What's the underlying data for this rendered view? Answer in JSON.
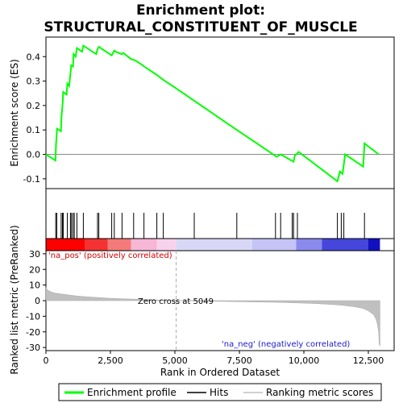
{
  "title_line1": "Enrichment plot:",
  "title_line2": "STRUCTURAL_CONSTITUENT_OF_MUSCLE",
  "chart_data": {
    "type": "line",
    "x_label": "Rank in Ordered Dataset",
    "x_range": [
      0,
      13500
    ],
    "x_ticks": [
      0,
      2500,
      5000,
      7500,
      10000,
      12500
    ],
    "x_tick_labels": [
      "0",
      "2,500",
      "5,000",
      "7,500",
      "10,000",
      "12,500"
    ],
    "es_panel": {
      "ylabel": "Enrichment score (ES)",
      "ylim": [
        -0.14,
        0.48
      ],
      "y_ticks": [
        -0.1,
        0.0,
        0.1,
        0.2,
        0.3,
        0.4
      ],
      "y_tick_labels": [
        "-0.1",
        "0.0",
        "0.1",
        "0.2",
        "0.3",
        "0.4"
      ],
      "series_name": "Enrichment profile",
      "color": "#00ff00",
      "points": [
        [
          0,
          0
        ],
        [
          370,
          -0.025
        ],
        [
          390,
          0.04
        ],
        [
          430,
          0.105
        ],
        [
          580,
          0.095
        ],
        [
          600,
          0.15
        ],
        [
          650,
          0.21
        ],
        [
          670,
          0.255
        ],
        [
          800,
          0.245
        ],
        [
          830,
          0.29
        ],
        [
          900,
          0.28
        ],
        [
          950,
          0.33
        ],
        [
          980,
          0.365
        ],
        [
          1050,
          0.36
        ],
        [
          1070,
          0.41
        ],
        [
          1150,
          0.4
        ],
        [
          1200,
          0.435
        ],
        [
          1400,
          0.42
        ],
        [
          1450,
          0.445
        ],
        [
          1950,
          0.41
        ],
        [
          2000,
          0.43
        ],
        [
          2050,
          0.44
        ],
        [
          2550,
          0.405
        ],
        [
          2650,
          0.425
        ],
        [
          2700,
          0.42
        ],
        [
          2950,
          0.41
        ],
        [
          3000,
          0.415
        ],
        [
          3300,
          0.39
        ],
        [
          3450,
          0.385
        ],
        [
          3750,
          0.365
        ],
        [
          3800,
          0.36
        ],
        [
          4300,
          0.325
        ],
        [
          4550,
          0.305
        ],
        [
          5049,
          0.27
        ],
        [
          7400,
          0.1
        ],
        [
          8950,
          -0.01
        ],
        [
          9100,
          0.0
        ],
        [
          9600,
          -0.03
        ],
        [
          9650,
          -0.005
        ],
        [
          9800,
          0.01
        ],
        [
          11300,
          -0.11
        ],
        [
          11400,
          -0.07
        ],
        [
          11500,
          -0.08
        ],
        [
          11550,
          -0.04
        ],
        [
          11600,
          0.0
        ],
        [
          12300,
          -0.05
        ],
        [
          12350,
          0.045
        ],
        [
          12900,
          0.0
        ]
      ]
    },
    "hits_panel": {
      "hit_ranks": [
        380,
        420,
        590,
        640,
        670,
        830,
        950,
        990,
        1050,
        1100,
        1200,
        1450,
        2000,
        2050,
        2550,
        2650,
        2950,
        3400,
        3800,
        4300,
        4550,
        5750,
        7400,
        8900,
        9100,
        9550,
        9600,
        9750,
        11300,
        11450,
        11550,
        12350
      ]
    },
    "heatmap": {
      "segments": [
        {
          "from": 0,
          "to": 1500,
          "color": "#ff0000"
        },
        {
          "from": 1500,
          "to": 2400,
          "color": "#f43232"
        },
        {
          "from": 2400,
          "to": 3300,
          "color": "#f47a7a"
        },
        {
          "from": 3300,
          "to": 4300,
          "color": "#f6b6d6"
        },
        {
          "from": 4300,
          "to": 5049,
          "color": "#f8d2ec"
        },
        {
          "from": 5049,
          "to": 8000,
          "color": "#d8d8f6"
        },
        {
          "from": 8000,
          "to": 9700,
          "color": "#c4c4f6"
        },
        {
          "from": 9700,
          "to": 10700,
          "color": "#8a8aee"
        },
        {
          "from": 10700,
          "to": 12500,
          "color": "#4646dc"
        },
        {
          "from": 12500,
          "to": 12950,
          "color": "#1010c0"
        }
      ]
    },
    "metric_panel": {
      "ylabel": "Ranked list metric (PreRanked)",
      "ylim": [
        -32,
        32
      ],
      "y_ticks": [
        -30,
        -20,
        -10,
        0,
        10,
        20,
        30
      ],
      "y_tick_labels": [
        "-30",
        "-20",
        "-10",
        "0",
        "10",
        "20",
        "30"
      ],
      "fill_color": "#c0c0c0",
      "points": [
        [
          0,
          8.5
        ],
        [
          50,
          7
        ],
        [
          150,
          6
        ],
        [
          300,
          5
        ],
        [
          500,
          4.5
        ],
        [
          800,
          3.8
        ],
        [
          1200,
          3
        ],
        [
          1600,
          2.5
        ],
        [
          2000,
          2
        ],
        [
          2500,
          1.5
        ],
        [
          3000,
          1.2
        ],
        [
          4000,
          0.6
        ],
        [
          5049,
          0
        ],
        [
          6000,
          -0.3
        ],
        [
          7000,
          -0.5
        ],
        [
          8000,
          -0.8
        ],
        [
          9000,
          -1.1
        ],
        [
          10000,
          -1.6
        ],
        [
          10500,
          -1.9
        ],
        [
          11000,
          -2.4
        ],
        [
          11500,
          -3
        ],
        [
          12000,
          -4
        ],
        [
          12300,
          -5
        ],
        [
          12500,
          -6.5
        ],
        [
          12700,
          -9
        ],
        [
          12800,
          -12
        ],
        [
          12850,
          -15
        ],
        [
          12900,
          -20
        ],
        [
          12920,
          -28
        ],
        [
          12950,
          -29
        ]
      ],
      "zero_cross_rank": 5049,
      "zero_cross_label": "Zero cross at 5049",
      "pos_label": "'na_pos' (positively correlated)",
      "neg_label": "'na_neg' (negatively correlated)"
    },
    "legend": {
      "placement": "bottom",
      "entries": [
        {
          "label": "Enrichment profile",
          "color": "#00ff00"
        },
        {
          "label": "Hits",
          "color": "#000000"
        },
        {
          "label": "Ranking metric scores",
          "color": "#c0c0c0"
        }
      ]
    }
  }
}
